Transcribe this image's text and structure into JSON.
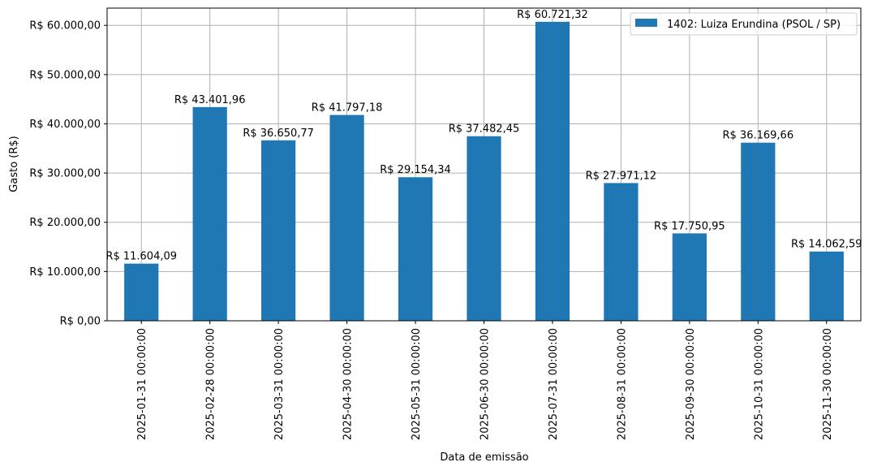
{
  "chart_data": {
    "type": "bar",
    "title": "",
    "xlabel": "Data de emissão",
    "ylabel": "Gasto (R$)",
    "ylim": [
      0,
      63500
    ],
    "grid": true,
    "legend_position": "upper right",
    "categories": [
      "2025-01-31 00:00:00",
      "2025-02-28 00:00:00",
      "2025-03-31 00:00:00",
      "2025-04-30 00:00:00",
      "2025-05-31 00:00:00",
      "2025-06-30 00:00:00",
      "2025-07-31 00:00:00",
      "2025-08-31 00:00:00",
      "2025-09-30 00:00:00",
      "2025-10-31 00:00:00",
      "2025-11-30 00:00:00"
    ],
    "series": [
      {
        "name": "1402: Luiza Erundina (PSOL / SP)",
        "color": "#1f77b4",
        "values": [
          11604.09,
          43401.96,
          36650.77,
          41797.18,
          29154.34,
          37482.45,
          60721.32,
          27971.12,
          17750.95,
          36169.66,
          14062.59
        ],
        "labels": [
          "R$ 11.604,09",
          "R$ 43.401,96",
          "R$ 36.650,77",
          "R$ 41.797,18",
          "R$ 29.154,34",
          "R$ 37.482,45",
          "R$ 60.721,32",
          "R$ 27.971,12",
          "R$ 17.750,95",
          "R$ 36.169,66",
          "R$ 14.062,59"
        ]
      }
    ],
    "yticks": [
      0,
      10000,
      20000,
      30000,
      40000,
      50000,
      60000
    ],
    "ytick_labels": [
      "R$ 0,00",
      "R$ 10.000,00",
      "R$ 20.000,00",
      "R$ 30.000,00",
      "R$ 40.000,00",
      "R$ 50.000,00",
      "R$ 60.000,00"
    ]
  },
  "colors": {
    "bar": "#1f77b4",
    "grid": "#b0b0b0",
    "axis": "#000000",
    "legend_border": "#cccccc"
  }
}
